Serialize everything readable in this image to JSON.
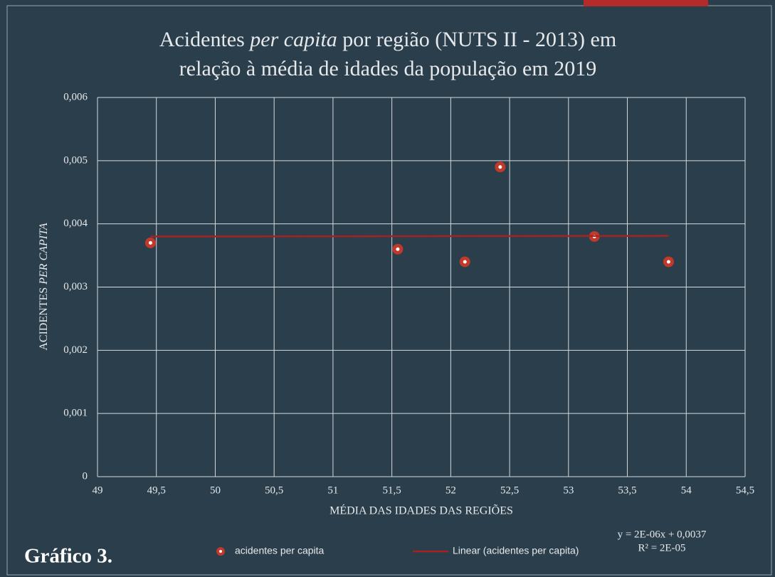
{
  "chart_data": {
    "type": "scatter",
    "title": [
      "Acidentes",
      "per capita",
      "por região (NUTS II - 2013) em",
      "relação à média de idades da população em 2019"
    ],
    "y_label": [
      "ACIDENTES",
      "PER CAPITA"
    ],
    "x_label": "MÉDIA DAS IDADES DAS REGIÕES",
    "series": [
      {
        "name": "acidentes per capita",
        "color": "#c0392b",
        "kind": "points",
        "x": [
          49.45,
          51.55,
          52.12,
          52.42,
          53.22,
          53.85
        ],
        "values": [
          0.0037,
          0.0036,
          0.0034,
          0.0049,
          0.0038,
          0.0034
        ]
      },
      {
        "name": "Linear (acidentes per capita)",
        "color": "#a52222",
        "kind": "line",
        "x": [
          49.45,
          53.85
        ],
        "values": [
          0.0038,
          0.00381
        ]
      }
    ],
    "xlim": [
      49,
      54.5
    ],
    "ylim": [
      0,
      0.006
    ],
    "xticks": [
      49,
      {
        "value": 49.5,
        "label": "49,5"
      },
      50,
      {
        "value": 50.5,
        "label": "50,5"
      },
      51,
      {
        "value": 51.5,
        "label": "51,5"
      },
      52,
      {
        "value": 52.5,
        "label": "52,5"
      },
      53,
      {
        "value": 53.5,
        "label": "53,5"
      },
      54,
      {
        "value": 54.5,
        "label": "54,5"
      }
    ],
    "yticks": [
      0,
      {
        "value": 0.001,
        "label": "0,001"
      },
      {
        "value": 0.002,
        "label": "0,002"
      },
      {
        "value": 0.003,
        "label": "0,003"
      },
      {
        "value": 0.004,
        "label": "0,004"
      },
      {
        "value": 0.005,
        "label": "0,005"
      },
      {
        "value": 0.006,
        "label": "0,006"
      }
    ],
    "grid": true,
    "legend": "bottom",
    "annotations": [
      "y = 2E-06x + 0,0037",
      "R² = 2E-05"
    ],
    "caption": "Gráfico 3."
  }
}
